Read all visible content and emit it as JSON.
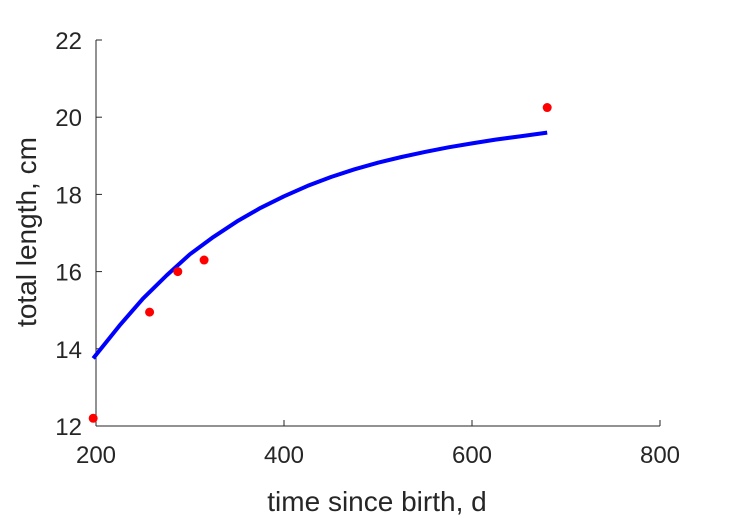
{
  "chart_data": {
    "type": "scatter",
    "xlabel": "time since birth, d",
    "ylabel": "total length, cm",
    "xlim": [
      200,
      800
    ],
    "ylim": [
      12,
      22
    ],
    "x_ticks": [
      200,
      400,
      600,
      800
    ],
    "y_ticks": [
      12,
      14,
      16,
      18,
      20,
      22
    ],
    "grid": false,
    "legend": "none",
    "series": [
      {
        "kind": "points",
        "color": "#ff0000",
        "points": [
          {
            "x": 197,
            "y": 12.2
          },
          {
            "x": 257,
            "y": 14.95
          },
          {
            "x": 287,
            "y": 16.0
          },
          {
            "x": 315,
            "y": 16.3
          },
          {
            "x": 680,
            "y": 20.25
          }
        ]
      },
      {
        "kind": "line",
        "color": "#0000ff",
        "points": [
          {
            "x": 197,
            "y": 13.75
          },
          {
            "x": 225,
            "y": 14.6
          },
          {
            "x": 250,
            "y": 15.3
          },
          {
            "x": 275,
            "y": 15.9
          },
          {
            "x": 300,
            "y": 16.45
          },
          {
            "x": 325,
            "y": 16.9
          },
          {
            "x": 350,
            "y": 17.3
          },
          {
            "x": 375,
            "y": 17.65
          },
          {
            "x": 400,
            "y": 17.95
          },
          {
            "x": 425,
            "y": 18.22
          },
          {
            "x": 450,
            "y": 18.45
          },
          {
            "x": 475,
            "y": 18.65
          },
          {
            "x": 500,
            "y": 18.82
          },
          {
            "x": 525,
            "y": 18.97
          },
          {
            "x": 550,
            "y": 19.1
          },
          {
            "x": 575,
            "y": 19.22
          },
          {
            "x": 600,
            "y": 19.32
          },
          {
            "x": 625,
            "y": 19.42
          },
          {
            "x": 650,
            "y": 19.5
          },
          {
            "x": 680,
            "y": 19.6
          }
        ]
      }
    ]
  }
}
